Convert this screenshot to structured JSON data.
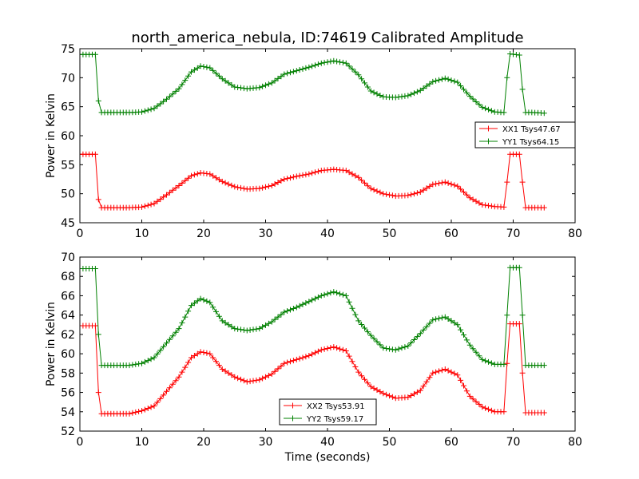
{
  "title": "north_america_nebula, ID:74619 Calibrated Amplitude",
  "colors": {
    "red": "#ff0000",
    "green": "#008000"
  },
  "chart_data": [
    {
      "type": "line",
      "ylabel": "Power in Kelvin",
      "xlabel": "",
      "xlim": [
        0,
        80
      ],
      "ylim": [
        45,
        75
      ],
      "xticks": [
        0,
        10,
        20,
        30,
        40,
        50,
        60,
        70,
        80
      ],
      "yticks": [
        45,
        50,
        55,
        60,
        65,
        70,
        75
      ],
      "grid": false,
      "legend_position": "center-right",
      "series": [
        {
          "name": "XX1 Tsys47.67",
          "color": "#ff0000",
          "points": [
            [
              0,
              56.8
            ],
            [
              2.5,
              56.8
            ],
            [
              3.0,
              49
            ],
            [
              3.5,
              47.6
            ],
            [
              5,
              47.6
            ],
            [
              8,
              47.6
            ],
            [
              10,
              47.7
            ],
            [
              12,
              48.3
            ],
            [
              14,
              49.8
            ],
            [
              16,
              51.4
            ],
            [
              18,
              53.1
            ],
            [
              19.5,
              53.6
            ],
            [
              21,
              53.4
            ],
            [
              23,
              52.1
            ],
            [
              25,
              51.2
            ],
            [
              27,
              50.8
            ],
            [
              29,
              50.9
            ],
            [
              31,
              51.4
            ],
            [
              33,
              52.5
            ],
            [
              35,
              53.0
            ],
            [
              37,
              53.4
            ],
            [
              39,
              54.0
            ],
            [
              41,
              54.2
            ],
            [
              43,
              54.0
            ],
            [
              45,
              52.8
            ],
            [
              47,
              50.9
            ],
            [
              49,
              50.0
            ],
            [
              51,
              49.6
            ],
            [
              53,
              49.7
            ],
            [
              55,
              50.3
            ],
            [
              57,
              51.6
            ],
            [
              59,
              52.0
            ],
            [
              61,
              51.3
            ],
            [
              63,
              49.3
            ],
            [
              65,
              48.1
            ],
            [
              67,
              47.8
            ],
            [
              68.5,
              47.7
            ],
            [
              69,
              52
            ],
            [
              69.5,
              56.8
            ],
            [
              71,
              56.8
            ],
            [
              71.5,
              52
            ],
            [
              72,
              47.6
            ],
            [
              73,
              47.6
            ],
            [
              75,
              47.6
            ]
          ]
        },
        {
          "name": "YY1 Tsys64.15",
          "color": "#008000",
          "points": [
            [
              0,
              74.0
            ],
            [
              2.5,
              74.0
            ],
            [
              3.0,
              66
            ],
            [
              3.5,
              64.0
            ],
            [
              5,
              64.0
            ],
            [
              8,
              64.0
            ],
            [
              10,
              64.1
            ],
            [
              12,
              64.7
            ],
            [
              14,
              66.3
            ],
            [
              16,
              68.1
            ],
            [
              18,
              71.0
            ],
            [
              19.5,
              72.0
            ],
            [
              21,
              71.7
            ],
            [
              23,
              69.8
            ],
            [
              25,
              68.4
            ],
            [
              27,
              68.1
            ],
            [
              29,
              68.3
            ],
            [
              31,
              69.1
            ],
            [
              33,
              70.6
            ],
            [
              35,
              71.2
            ],
            [
              37,
              71.8
            ],
            [
              39,
              72.5
            ],
            [
              41,
              72.9
            ],
            [
              43,
              72.5
            ],
            [
              45,
              70.5
            ],
            [
              47,
              67.7
            ],
            [
              49,
              66.7
            ],
            [
              51,
              66.6
            ],
            [
              53,
              66.9
            ],
            [
              55,
              67.8
            ],
            [
              57,
              69.3
            ],
            [
              59,
              69.9
            ],
            [
              61,
              69.2
            ],
            [
              63,
              66.8
            ],
            [
              65,
              64.9
            ],
            [
              67,
              64.1
            ],
            [
              68.5,
              64.0
            ],
            [
              69,
              70
            ],
            [
              69.5,
              74.1
            ],
            [
              71,
              73.9
            ],
            [
              71.5,
              68
            ],
            [
              72,
              64.0
            ],
            [
              73,
              64.0
            ],
            [
              75,
              63.9
            ]
          ]
        }
      ]
    },
    {
      "type": "line",
      "ylabel": "Power in Kelvin",
      "xlabel": "Time (seconds)",
      "xlim": [
        0,
        80
      ],
      "ylim": [
        52,
        70
      ],
      "xticks": [
        0,
        10,
        20,
        30,
        40,
        50,
        60,
        70,
        80
      ],
      "yticks": [
        52,
        54,
        56,
        58,
        60,
        62,
        64,
        66,
        68,
        70
      ],
      "grid": false,
      "legend_position": "bottom-center",
      "series": [
        {
          "name": "XX2 Tsys53.91",
          "color": "#ff0000",
          "points": [
            [
              0,
              62.9
            ],
            [
              2.5,
              62.9
            ],
            [
              3.0,
              56
            ],
            [
              3.5,
              53.8
            ],
            [
              5,
              53.8
            ],
            [
              8,
              53.8
            ],
            [
              10,
              54.1
            ],
            [
              12,
              54.6
            ],
            [
              14,
              56.1
            ],
            [
              16,
              57.6
            ],
            [
              18,
              59.6
            ],
            [
              19.5,
              60.2
            ],
            [
              21,
              60.0
            ],
            [
              23,
              58.4
            ],
            [
              25,
              57.6
            ],
            [
              27,
              57.1
            ],
            [
              29,
              57.3
            ],
            [
              31,
              57.9
            ],
            [
              33,
              59.0
            ],
            [
              35,
              59.4
            ],
            [
              37,
              59.8
            ],
            [
              39,
              60.4
            ],
            [
              41,
              60.7
            ],
            [
              43,
              60.3
            ],
            [
              45,
              58.1
            ],
            [
              47,
              56.6
            ],
            [
              49,
              55.9
            ],
            [
              51,
              55.4
            ],
            [
              53,
              55.5
            ],
            [
              55,
              56.2
            ],
            [
              57,
              58.0
            ],
            [
              59,
              58.4
            ],
            [
              61,
              57.8
            ],
            [
              63,
              55.6
            ],
            [
              65,
              54.5
            ],
            [
              67,
              54.0
            ],
            [
              68.5,
              54.0
            ],
            [
              69,
              59
            ],
            [
              69.5,
              63.1
            ],
            [
              71,
              63.1
            ],
            [
              71.5,
              58
            ],
            [
              72,
              53.9
            ],
            [
              73,
              53.9
            ],
            [
              75,
              53.9
            ]
          ]
        },
        {
          "name": "YY2 Tsys59.17",
          "color": "#008000",
          "points": [
            [
              0,
              68.8
            ],
            [
              2.5,
              68.8
            ],
            [
              3.0,
              62
            ],
            [
              3.5,
              58.8
            ],
            [
              5,
              58.8
            ],
            [
              8,
              58.8
            ],
            [
              10,
              59.0
            ],
            [
              12,
              59.6
            ],
            [
              14,
              61.1
            ],
            [
              16,
              62.6
            ],
            [
              18,
              65.0
            ],
            [
              19.5,
              65.7
            ],
            [
              21,
              65.3
            ],
            [
              23,
              63.4
            ],
            [
              25,
              62.6
            ],
            [
              27,
              62.4
            ],
            [
              29,
              62.6
            ],
            [
              31,
              63.3
            ],
            [
              33,
              64.3
            ],
            [
              35,
              64.8
            ],
            [
              37,
              65.4
            ],
            [
              39,
              66.0
            ],
            [
              41,
              66.4
            ],
            [
              43,
              66.0
            ],
            [
              45,
              63.4
            ],
            [
              47,
              61.9
            ],
            [
              49,
              60.6
            ],
            [
              51,
              60.4
            ],
            [
              53,
              60.8
            ],
            [
              55,
              62.1
            ],
            [
              57,
              63.5
            ],
            [
              59,
              63.8
            ],
            [
              61,
              63.0
            ],
            [
              63,
              60.9
            ],
            [
              65,
              59.4
            ],
            [
              67,
              58.9
            ],
            [
              68.5,
              58.9
            ],
            [
              69,
              64
            ],
            [
              69.5,
              68.9
            ],
            [
              71,
              68.9
            ],
            [
              71.5,
              64
            ],
            [
              72,
              58.8
            ],
            [
              73,
              58.8
            ],
            [
              75,
              58.8
            ]
          ]
        }
      ]
    }
  ]
}
